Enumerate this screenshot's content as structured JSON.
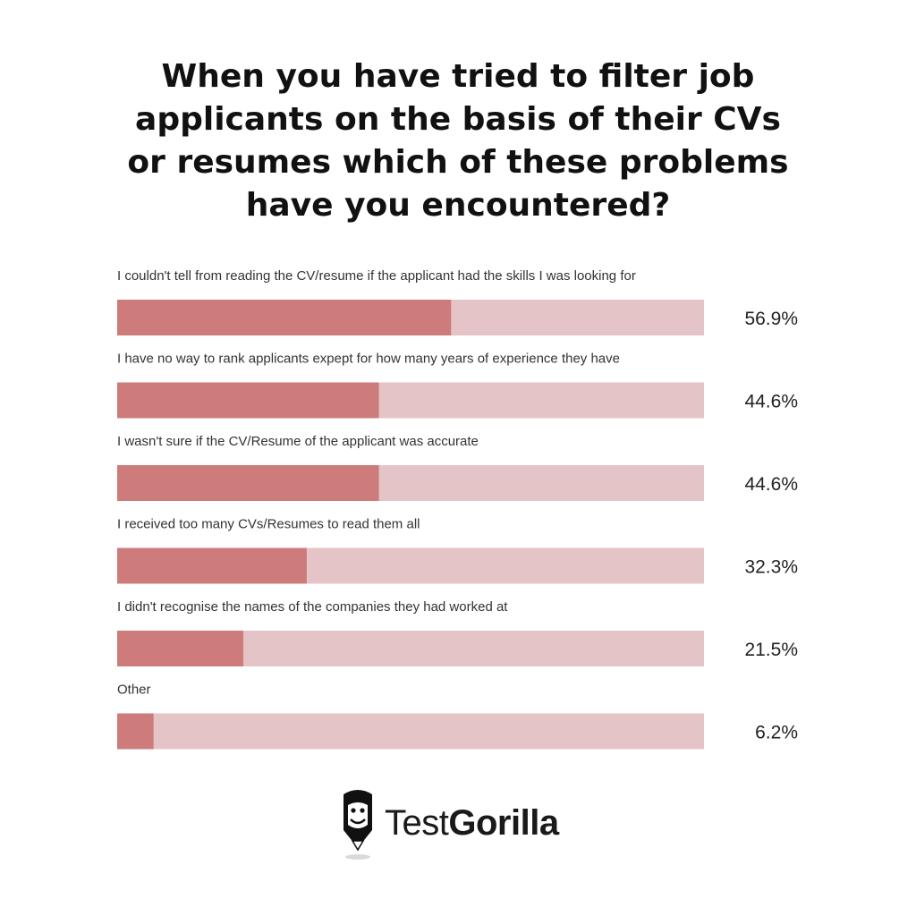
{
  "chart_data": {
    "type": "bar",
    "orientation": "horizontal",
    "title_lines": [
      "When you have tried to filter job",
      "applicants on the basis of their CVs",
      "or resumes which of these problems",
      "have you encountered?"
    ],
    "categories": [
      "I couldn't tell from reading the CV/resume if the applicant had the skills I was looking for",
      "I have no way to rank applicants expept for how many years of experience they have",
      "I wasn't sure if the CV/Resume of the applicant was accurate",
      "I received too many CVs/Resumes to read them all",
      "I didn't recognise the names of the companies they had worked at",
      "Other"
    ],
    "values": [
      56.9,
      44.6,
      44.6,
      32.3,
      21.5,
      6.2
    ],
    "value_labels": [
      "56.9%",
      "44.6%",
      "44.6%",
      "32.3%",
      "21.5%",
      "6.2%"
    ],
    "unit": "%",
    "xlim": [
      0,
      100
    ],
    "grid": false,
    "legend": "none",
    "colors": {
      "fill": "#cd7b7b",
      "track": "#e4c4c6"
    }
  },
  "brand": {
    "logo_icon": "gorilla-icon",
    "name_light": "Test",
    "name_bold": "Gorilla"
  }
}
